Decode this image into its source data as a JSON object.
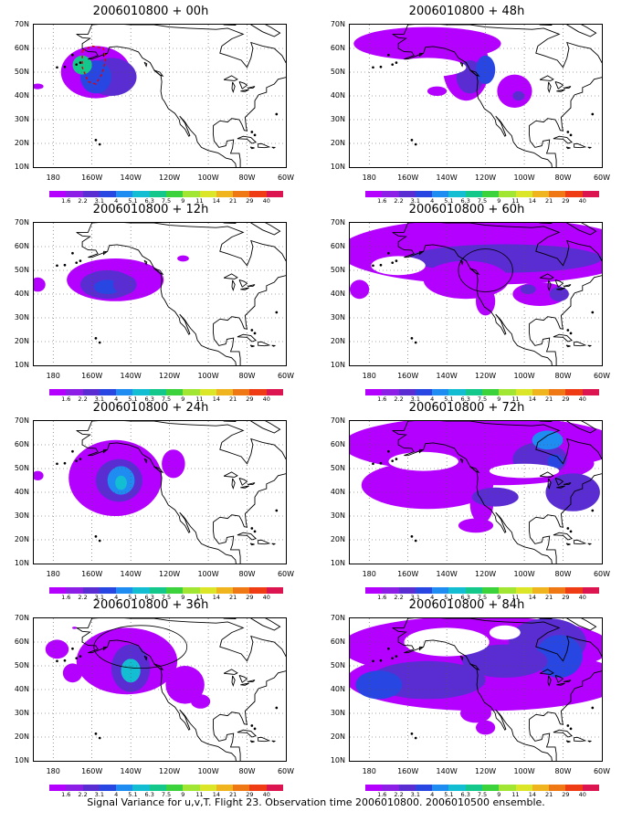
{
  "caption": "Signal Variance for u,v,T. Flight 23. Observation time 2006010800. 2006010500 ensemble.",
  "y_ticks": [
    "70N",
    "60N",
    "50N",
    "40N",
    "30N",
    "20N",
    "10N"
  ],
  "x_ticks": [
    "180",
    "160W",
    "140W",
    "120W",
    "100W",
    "80W",
    "60W"
  ],
  "colorbar": {
    "labels": [
      "1.6",
      "2.2",
      "3.1",
      "4",
      "5.1",
      "6.3",
      "7.5",
      "9",
      "11",
      "14",
      "21",
      "29",
      "40"
    ],
    "colors": [
      "#b400ff",
      "#8c1ee6",
      "#5a2dd2",
      "#2846e1",
      "#1e8cf0",
      "#14bed2",
      "#14c88c",
      "#3cd23c",
      "#a0e632",
      "#dce628",
      "#f0b41e",
      "#f07814",
      "#f03c14",
      "#dc1450"
    ]
  },
  "panels": [
    {
      "title": "2006010800 + 00h"
    },
    {
      "title": "2006010800 + 48h"
    },
    {
      "title": "2006010800 + 12h"
    },
    {
      "title": "2006010800 + 60h"
    },
    {
      "title": "2006010800 + 24h"
    },
    {
      "title": "2006010800 + 72h"
    },
    {
      "title": "2006010800 + 36h"
    },
    {
      "title": "2006010800 + 84h"
    }
  ]
}
